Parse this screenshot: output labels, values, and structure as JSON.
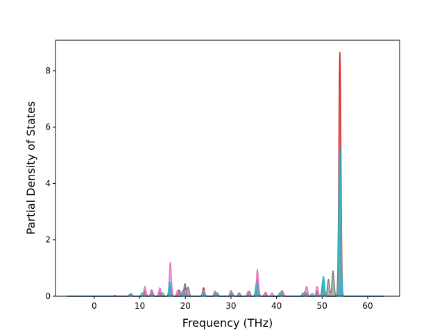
{
  "chart_data": {
    "type": "line",
    "title": "",
    "xlabel": "Frequency (THz)",
    "ylabel": "Partial Density of States",
    "xlim": [
      -8.5,
      67.0
    ],
    "ylim": [
      0,
      9.08
    ],
    "xticks": [
      0,
      10,
      20,
      30,
      40,
      50,
      60
    ],
    "yticks": [
      0,
      2,
      4,
      6,
      8
    ],
    "grid": false,
    "legend": "none",
    "x_domain": [
      -5.9,
      63.6
    ],
    "series": [
      {
        "color": "#d62728",
        "peaks": [
          [
            8.1,
            0.05
          ],
          [
            11.2,
            0.2
          ],
          [
            12.6,
            0.22
          ],
          [
            14.3,
            0.15
          ],
          [
            16.7,
            0.35
          ],
          [
            18.6,
            0.22
          ],
          [
            20.0,
            0.3
          ],
          [
            24.0,
            0.3
          ],
          [
            26.7,
            0.12
          ],
          [
            30.2,
            0.12
          ],
          [
            33.8,
            0.15
          ],
          [
            35.8,
            0.6
          ],
          [
            37.5,
            0.12
          ],
          [
            41.3,
            0.15
          ],
          [
            46.5,
            0.12
          ],
          [
            49.0,
            0.15
          ],
          [
            50.3,
            0.55
          ],
          [
            53.9,
            8.65
          ]
        ]
      },
      {
        "color": "#7f7f7f",
        "peaks": [
          [
            8.2,
            0.06
          ],
          [
            11.0,
            0.1
          ],
          [
            12.5,
            0.12
          ],
          [
            16.6,
            0.3
          ],
          [
            19.9,
            0.45
          ],
          [
            20.6,
            0.32
          ],
          [
            24.1,
            0.15
          ],
          [
            26.5,
            0.18
          ],
          [
            30.0,
            0.2
          ],
          [
            31.8,
            0.12
          ],
          [
            34.0,
            0.18
          ],
          [
            35.9,
            0.6
          ],
          [
            41.2,
            0.2
          ],
          [
            46.3,
            0.18
          ],
          [
            48.9,
            0.2
          ],
          [
            50.2,
            0.6
          ],
          [
            51.4,
            0.6
          ],
          [
            52.4,
            0.9
          ],
          [
            54.0,
            0.4
          ]
        ]
      },
      {
        "color": "#e377c2",
        "peaks": [
          [
            7.8,
            0.06
          ],
          [
            11.1,
            0.35
          ],
          [
            12.7,
            0.2
          ],
          [
            14.4,
            0.3
          ],
          [
            16.7,
            1.2
          ],
          [
            18.3,
            0.2
          ],
          [
            20.0,
            0.22
          ],
          [
            24.0,
            0.22
          ],
          [
            26.6,
            0.15
          ],
          [
            30.1,
            0.18
          ],
          [
            33.8,
            0.18
          ],
          [
            35.8,
            0.95
          ],
          [
            37.6,
            0.15
          ],
          [
            39.0,
            0.12
          ],
          [
            41.4,
            0.15
          ],
          [
            46.6,
            0.35
          ],
          [
            48.9,
            0.35
          ],
          [
            50.3,
            0.6
          ],
          [
            53.9,
            0.5
          ]
        ]
      },
      {
        "color": "#17becf",
        "peaks": [
          [
            4.5,
            0.03
          ],
          [
            8.0,
            0.1
          ],
          [
            10.5,
            0.12
          ],
          [
            12.8,
            0.1
          ],
          [
            15.0,
            0.12
          ],
          [
            16.6,
            0.5
          ],
          [
            19.4,
            0.2
          ],
          [
            23.9,
            0.15
          ],
          [
            27.0,
            0.12
          ],
          [
            30.3,
            0.1
          ],
          [
            35.6,
            0.45
          ],
          [
            40.7,
            0.12
          ],
          [
            45.8,
            0.12
          ],
          [
            47.8,
            0.1
          ],
          [
            50.3,
            0.7
          ],
          [
            53.9,
            5.3
          ]
        ]
      }
    ]
  }
}
